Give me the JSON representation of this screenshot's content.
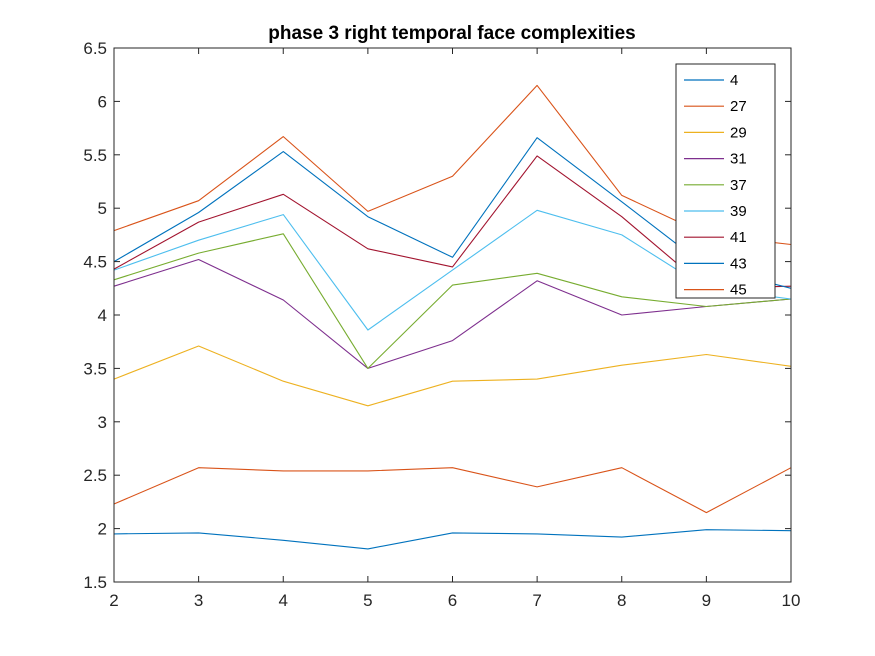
{
  "chart_data": {
    "type": "line",
    "title": "phase 3 right temporal face complexities",
    "xlabel": "",
    "ylabel": "",
    "xlim": [
      2,
      10
    ],
    "ylim": [
      1.5,
      6.5
    ],
    "xticks": [
      "2",
      "3",
      "4",
      "5",
      "6",
      "7",
      "8",
      "9",
      "10"
    ],
    "yticks": [
      "1.5",
      "2",
      "2.5",
      "3",
      "3.5",
      "4",
      "4.5",
      "5",
      "5.5",
      "6",
      "6.5"
    ],
    "grid": false,
    "legend_location": "top-right",
    "x": [
      2,
      3,
      4,
      5,
      6,
      7,
      8,
      9,
      10
    ],
    "series": [
      {
        "name": "4",
        "color": "#0072BD",
        "values": [
          1.95,
          1.96,
          1.89,
          1.81,
          1.96,
          1.95,
          1.92,
          1.99,
          1.98
        ]
      },
      {
        "name": "27",
        "color": "#D95319",
        "values": [
          2.23,
          2.57,
          2.54,
          2.54,
          2.57,
          2.39,
          2.57,
          2.15,
          2.57
        ]
      },
      {
        "name": "29",
        "color": "#EDB120",
        "values": [
          3.4,
          3.71,
          3.38,
          3.15,
          3.38,
          3.4,
          3.53,
          3.63,
          3.52
        ]
      },
      {
        "name": "31",
        "color": "#7E2F8E",
        "values": [
          4.27,
          4.52,
          4.14,
          3.5,
          3.76,
          4.32,
          4.0,
          4.08,
          4.15
        ]
      },
      {
        "name": "37",
        "color": "#77AC30",
        "values": [
          4.33,
          4.58,
          4.76,
          3.5,
          4.28,
          4.39,
          4.17,
          4.08,
          4.15
        ]
      },
      {
        "name": "39",
        "color": "#4DBEEE",
        "values": [
          4.42,
          4.7,
          4.94,
          3.86,
          4.42,
          4.98,
          4.75,
          4.25,
          4.15
        ]
      },
      {
        "name": "41",
        "color": "#A2142F",
        "values": [
          4.43,
          4.87,
          5.13,
          4.62,
          4.45,
          5.49,
          4.92,
          4.25,
          4.27
        ]
      },
      {
        "name": "43",
        "color": "#0072BD",
        "values": [
          4.5,
          4.96,
          5.53,
          4.92,
          4.54,
          5.66,
          5.06,
          4.45,
          4.25
        ]
      },
      {
        "name": "45",
        "color": "#D95319",
        "values": [
          4.79,
          5.07,
          5.67,
          4.97,
          5.3,
          6.15,
          5.12,
          4.75,
          4.66
        ]
      }
    ]
  }
}
